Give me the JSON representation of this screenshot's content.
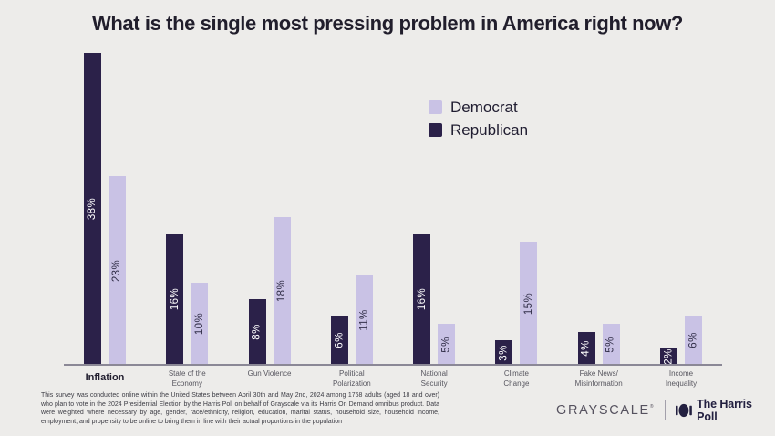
{
  "title": "What is the single most pressing problem in America right now?",
  "colors": {
    "background": "#EDECEA",
    "democrat": "#C9C2E5",
    "republican": "#2B2149",
    "axis_line": "#8B8896",
    "title_text": "#211E2C"
  },
  "legend": {
    "items": [
      {
        "label": "Democrat",
        "color": "#C9C2E5"
      },
      {
        "label": "Republican",
        "color": "#2B2149"
      }
    ]
  },
  "chart_data": {
    "type": "bar",
    "title": "What is the single most pressing problem in America right now?",
    "categories": [
      "Inflation",
      "State of the Economy",
      "Gun Violence",
      "Political Polarization",
      "National Security",
      "Climate Change",
      "Fake News/Misinformation",
      "Income Inequality"
    ],
    "category_lines": [
      [
        "Inflation"
      ],
      [
        "State of the",
        "Economy"
      ],
      [
        "Gun Violence"
      ],
      [
        "Political",
        "Polarization"
      ],
      [
        "National",
        "Security"
      ],
      [
        "Climate",
        "Change"
      ],
      [
        "Fake News/",
        "Misinformation"
      ],
      [
        "Income",
        "Inequality"
      ]
    ],
    "category_emphasis": [
      true,
      false,
      false,
      false,
      false,
      false,
      false,
      false
    ],
    "series": [
      {
        "name": "Republican",
        "color": "#2B2149",
        "value_label_color": "#FFFFFF",
        "values": [
          38,
          16,
          8,
          6,
          16,
          3,
          4,
          2
        ]
      },
      {
        "name": "Democrat",
        "color": "#C9C2E5",
        "value_label_color": "#33304A",
        "values": [
          23,
          10,
          18,
          11,
          5,
          15,
          5,
          6
        ]
      }
    ],
    "value_suffix": "%",
    "value_labels_rotated": true,
    "ylim": [
      0,
      38
    ],
    "grid": false,
    "legend_position": "upper-center-right",
    "legend_order": [
      "Democrat",
      "Republican"
    ],
    "bar_order_within_group": [
      "Republican",
      "Democrat"
    ]
  },
  "footnote": "This survey was conducted online within the United States between April 30th and May 2nd, 2024 among 1768 adults (aged 18 and over) who plan to vote in the 2024 Presidential Election by the Harris Poll on behalf of Grayscale via its Harris On Demand omnibus product. Data were weighted where necessary by age, gender, race/ethnicity, religion, education, marital status, household size, household income, employment, and propensity to be online to bring them in line with their actual proportions in the population",
  "footer": {
    "grayscale_label": "GRAYSCALE",
    "grayscale_mark": "®",
    "harris_label": "The Harris Poll",
    "harris_icon": "harris-poll-mark"
  }
}
